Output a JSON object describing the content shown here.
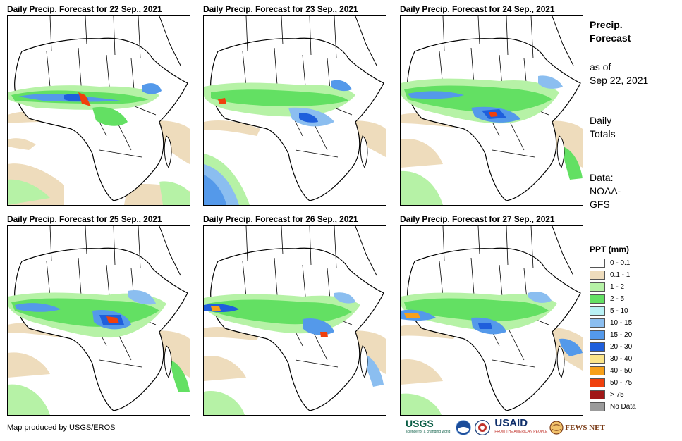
{
  "panels": [
    {
      "title": "Daily Precip. Forecast for 22 Sep., 2021"
    },
    {
      "title": "Daily Precip. Forecast for 23 Sep., 2021"
    },
    {
      "title": "Daily Precip. Forecast for 24 Sep., 2021"
    },
    {
      "title": "Daily Precip. Forecast for 25 Sep., 2021"
    },
    {
      "title": "Daily Precip. Forecast for 26 Sep., 2021"
    },
    {
      "title": "Daily Precip. Forecast for 27 Sep., 2021"
    }
  ],
  "sidebar": {
    "title_line1": "Precip.",
    "title_line2": "Forecast",
    "asof_line1": "as of",
    "asof_line2": "Sep 22, 2021",
    "totals_line1": "Daily",
    "totals_line2": "Totals",
    "data_line1": "Data:",
    "data_line2": "NOAA-",
    "data_line3": "GFS"
  },
  "legend": {
    "title": "PPT (mm)",
    "items": [
      {
        "label": "0 - 0.1",
        "color": "#ffffff"
      },
      {
        "label": "0.1 - 1",
        "color": "#eedcbc"
      },
      {
        "label": "1 - 2",
        "color": "#b6f2a6"
      },
      {
        "label": "2 - 5",
        "color": "#63e063"
      },
      {
        "label": "5 - 10",
        "color": "#b9f1f5"
      },
      {
        "label": "10 - 15",
        "color": "#8bbef0"
      },
      {
        "label": "15 - 20",
        "color": "#5499ea"
      },
      {
        "label": "20 - 30",
        "color": "#1f5fdc"
      },
      {
        "label": "30 - 40",
        "color": "#fbe58a"
      },
      {
        "label": "40 - 50",
        "color": "#f7a01a"
      },
      {
        "label": "50 - 75",
        "color": "#f0400c"
      },
      {
        "label": "> 75",
        "color": "#a01818"
      },
      {
        "label": "No Data",
        "color": "#9b9b9b"
      }
    ]
  },
  "footer": {
    "credit": "Map produced by USGS/EROS"
  },
  "logos": {
    "usgs": "USGS",
    "usgs_tagline": "science for a changing world",
    "usaid": "USAID",
    "usaid_tagline": "FROM THE AMERICAN PEOPLE",
    "fews": "FEWS NET"
  }
}
